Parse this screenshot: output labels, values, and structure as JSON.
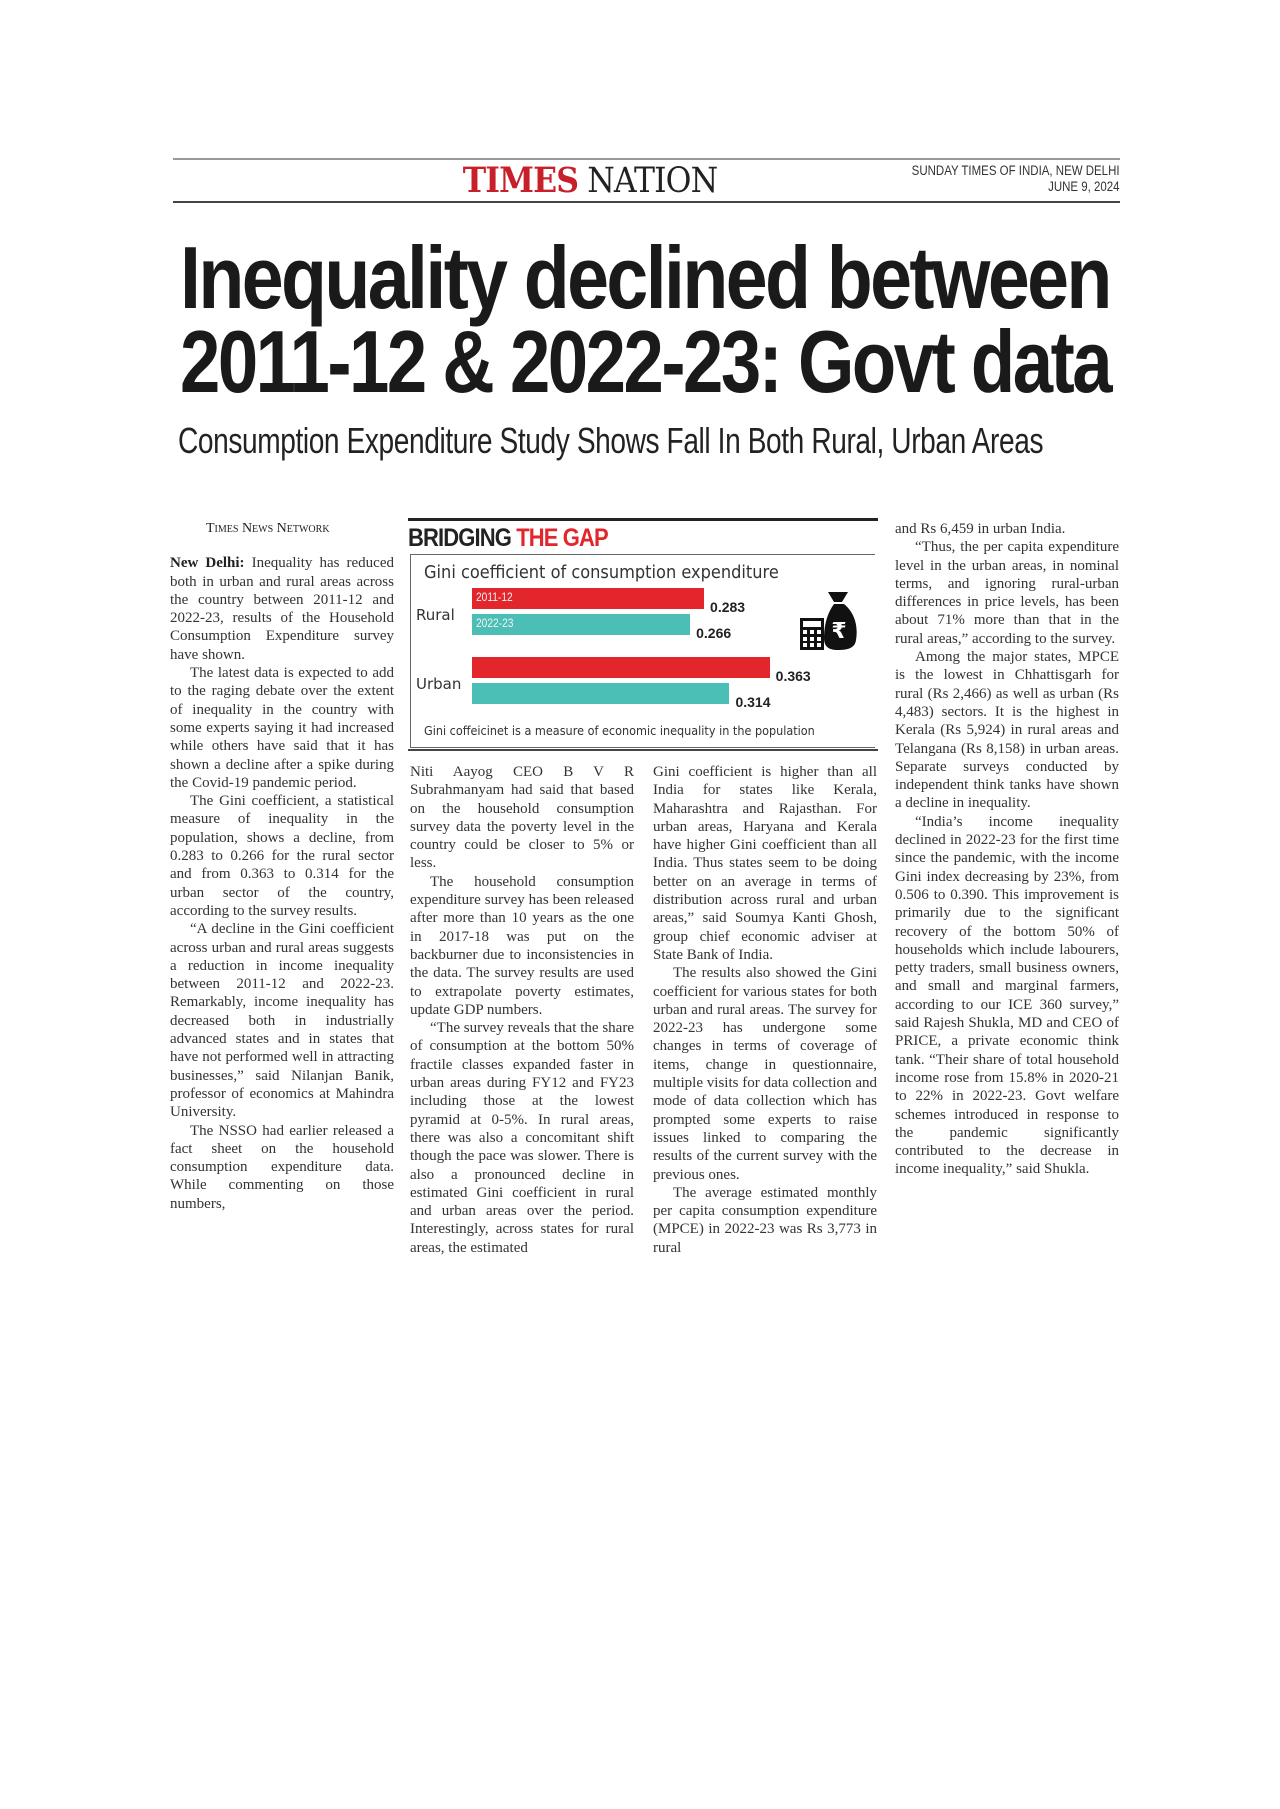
{
  "masthead": {
    "section_a": "TIMES",
    "section_b": "NATION",
    "edition": "SUNDAY TIMES OF INDIA, NEW DELHI",
    "date": "JUNE 9, 2024"
  },
  "headline": {
    "line1": "Inequality declined between",
    "line2": "2011-12 & 2022-23: Govt data"
  },
  "subhead": "Consumption Expenditure Study Shows Fall In Both Rural, Urban Areas",
  "byline": "Times News Network",
  "dateline": "New Delhi:",
  "columns": [
    [
      "Inequality has reduced both in urban and rural areas across the country between 2011-12 and 2022-23, results of the Household Consumption Expenditure survey have shown.",
      "The latest data is expected to add to the raging debate over the extent of inequality in the country with some experts saying it had increased while others have said that it has shown a decline after a spike during the Covid-19 pandemic period.",
      "The Gini coefficient, a statistical measure of inequality in the population, shows a decline, from 0.283 to 0.266 for the rural sector and from 0.363 to 0.314 for the urban sector of the country, according to the survey results.",
      "“A decline in the Gini coefficient across urban and rural areas suggests a reduction in income inequality between 2011-12 and 2022-23. Remarkably, income inequality has decreased both in industrially advanced states and in states that have not performed well in attracting businesses,” said Nilanjan Banik, professor of economics at Mahindra University.",
      "The NSSO had earlier released a fact sheet on the household consumption expenditure data. While commenting on those numbers,"
    ],
    [
      "Niti Aayog CEO B V R Subrahmanyam had said that based on the household consumption survey data the poverty level in the country could be closer to 5% or less.",
      "The household consumption expenditure survey has been released after more than 10 years as the one in 2017-18 was put on the backburner due to inconsistencies in the data. The survey results are used to extrapolate poverty estimates, update GDP numbers.",
      "“The survey reveals that the share of consumption at the bottom 50% fractile classes expanded faster in urban areas during FY12 and FY23 including those at the lowest pyramid at 0-5%. In rural areas, there was also a concomitant shift though the pace was slower. There is also a pronounced decline in estimated Gini coefficient in rural and urban areas over the period. Interestingly, across states for rural areas, the estimated"
    ],
    [
      "Gini coefficient is higher than all India for states like Kerala, Maharashtra and Rajasthan. For urban areas, Haryana and Kerala have higher Gini coefficient than all India. Thus states seem to be doing better on an average in terms of distribution across rural and urban areas,” said Soumya Kanti Ghosh, group chief economic adviser at State Bank of India.",
      "The results also showed the Gini coefficient for various states for both urban and rural areas. The survey for 2022-23 has undergone some changes in terms of coverage of items, change in questionnaire, multiple visits for data collection and mode of data collection which has prompted some experts to raise issues linked to comparing the results of the current survey with the previous ones.",
      "The average estimated monthly per capita consumption expenditure (MPCE) in 2022-23 was Rs 3,773 in rural"
    ],
    [
      "and Rs 6,459 in urban India.",
      "“Thus, the per capita expenditure level in the urban areas, in nominal terms, and ignoring rural-urban differences in price levels, has been about 71% more than that in the rural areas,” according to the survey.",
      "Among the major states, MPCE is the lowest in Chhattisgarh for rural (Rs 2,466) as well as urban (Rs 4,483) sectors. It is the highest in Kerala (Rs 5,924) in rural areas and Telangana (Rs 8,158) in urban areas. Separate surveys conducted by independent think tanks have shown a decline in inequality.",
      "“India’s income inequality declined in 2022-23 for the first time since the pandemic, with the income Gini index decreasing by 23%, from 0.506 to 0.390. This improvement is primarily due to the significant recovery of the bottom 50% of households which include labourers, petty traders, small business owners, and small and marginal farmers, according to our ICE 360 survey,” said Rajesh Shukla, MD and CEO of PRICE, a private economic think tank. “Their share of total household income rose from 15.8% in 2020-21 to 22% in 2022-23. Govt welfare schemes introduced in response to the pandemic significantly contributed to the decrease in income inequality,” said Shukla."
    ]
  ],
  "chart_data": {
    "type": "bar",
    "orientation": "horizontal",
    "title": "BRIDGING THE GAP",
    "title_plain": "BRIDGING",
    "title_accent": "THE GAP",
    "subtitle": "Gini coefficient of consumption expenditure",
    "categories": [
      "Rural",
      "Urban"
    ],
    "series": [
      {
        "name": "2011-12",
        "values": [
          0.283,
          0.363
        ],
        "labels": [
          "0.283",
          "0.363"
        ],
        "color": "#e3262c"
      },
      {
        "name": "2022-23",
        "values": [
          0.266,
          0.314
        ],
        "labels": [
          "0.266",
          "0.314"
        ],
        "color": "#4bbfb6"
      }
    ],
    "xlim": [
      0,
      0.4
    ],
    "grid": false,
    "legend": "inside-bars",
    "note": "Gini coffeicinet is a measure of economic inequality in the population",
    "icon": "money-bag-calculator-rupee-icon"
  },
  "colors": {
    "accent_red": "#c8202a",
    "bar_red": "#e3262c",
    "bar_teal": "#4bbfb6"
  }
}
